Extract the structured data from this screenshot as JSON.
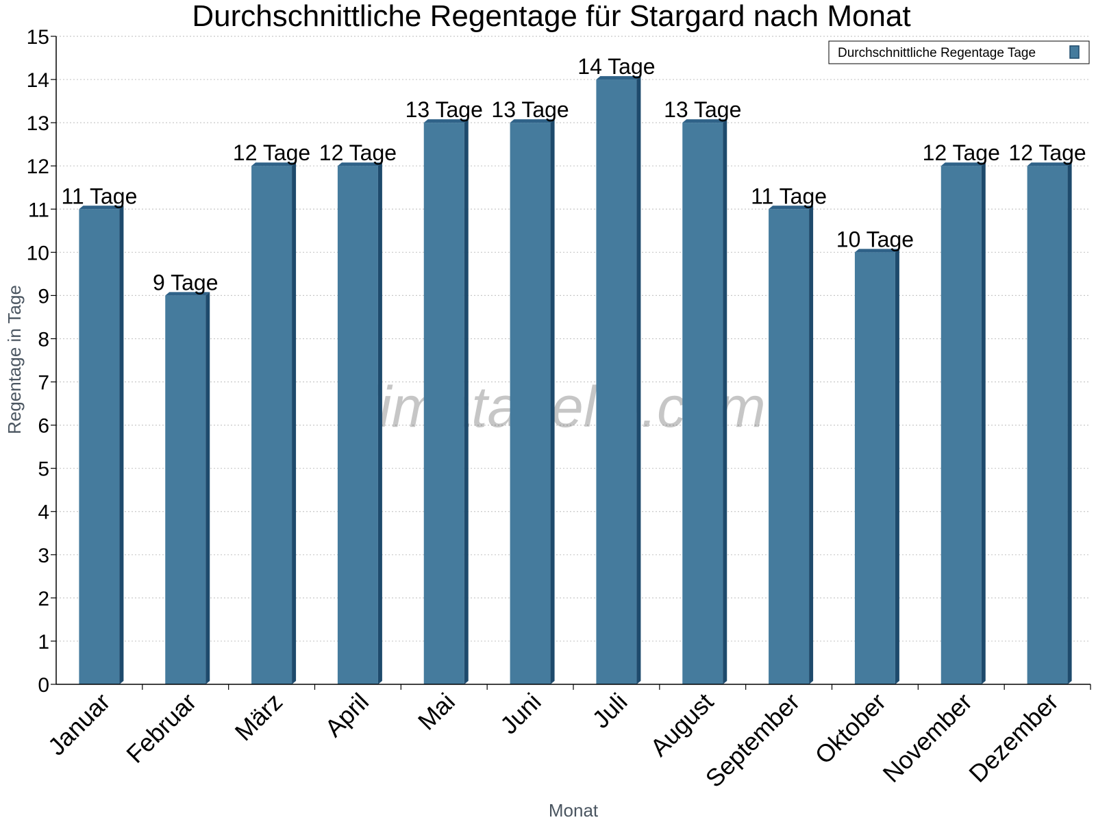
{
  "chart_data": {
    "type": "bar",
    "title": "Durchschnittliche Regentage für Stargard nach Monat",
    "xlabel": "Monat",
    "ylabel": "Regentage in Tage",
    "categories": [
      "Januar",
      "Februar",
      "März",
      "April",
      "Mai",
      "Juni",
      "Juli",
      "August",
      "September",
      "Oktober",
      "November",
      "Dezember"
    ],
    "series": [
      {
        "name": "Durchschnittliche Regentage Tage",
        "values": [
          11,
          9,
          12,
          12,
          13,
          13,
          14,
          13,
          11,
          10,
          12,
          12
        ],
        "labels": [
          "11 Tage",
          "9 Tage",
          "12 Tage",
          "12 Tage",
          "13 Tage",
          "13 Tage",
          "14 Tage",
          "13 Tage",
          "11 Tage",
          "10 Tage",
          "12 Tage",
          "12 Tage"
        ]
      }
    ],
    "ylim": [
      0,
      15
    ],
    "yticks": [
      "0",
      "1",
      "2",
      "3",
      "4",
      "5",
      "6",
      "7",
      "8",
      "9",
      "10",
      "11",
      "12",
      "13",
      "14",
      "15"
    ],
    "grid": true,
    "legend_position": "top-right",
    "colors": {
      "bar_front": "#457b9d",
      "bar_side": "#1e4a6c",
      "bar_top": "#2f6288",
      "grid": "#c8c8c8",
      "axis": "#000000"
    }
  },
  "watermark": "klimatabelle.com"
}
